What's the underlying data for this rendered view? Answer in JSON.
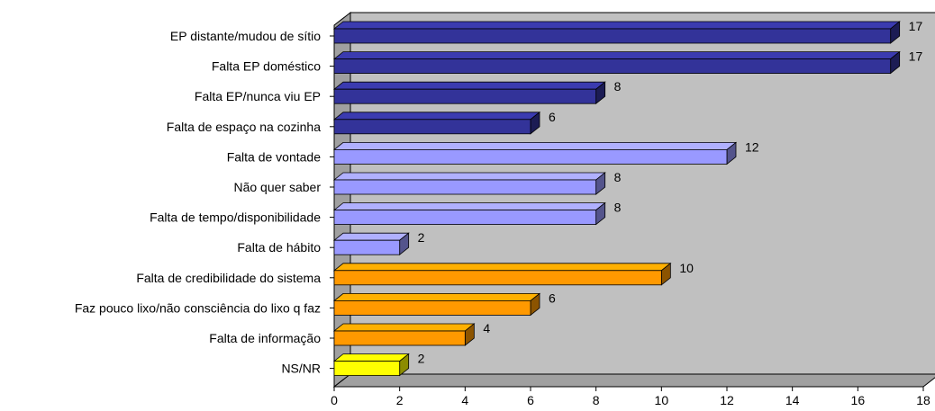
{
  "chart_data": {
    "type": "bar",
    "orientation": "horizontal",
    "style": "3d",
    "title": "",
    "xlabel": "",
    "ylabel": "",
    "xlim": [
      0,
      18
    ],
    "x_ticks": [
      0,
      2,
      4,
      6,
      8,
      10,
      12,
      14,
      16,
      18
    ],
    "grid": false,
    "legend": "none",
    "plot_background": "#c0c0c0",
    "categories": [
      "EP distante/mudou de sítio",
      "Falta EP doméstico",
      "Falta EP/nunca viu EP",
      "Falta de espaço na cozinha",
      "Falta de vontade",
      "Não quer saber",
      "Falta de tempo/disponibilidade",
      "Falta de hábito",
      "Falta de credibilidade do sistema",
      "Faz pouco lixo/não consciência do lixo q faz",
      "Falta de informação",
      "NS/NR"
    ],
    "values": [
      17,
      17,
      8,
      6,
      12,
      8,
      8,
      2,
      10,
      6,
      4,
      2
    ],
    "value_labels": [
      "17",
      "17",
      "8",
      "6",
      "12",
      "8",
      "8",
      "2",
      "10",
      "6",
      "4",
      "2"
    ],
    "bar_colors": [
      "#333399",
      "#333399",
      "#333399",
      "#333399",
      "#9999ff",
      "#9999ff",
      "#9999ff",
      "#9999ff",
      "#ff9900",
      "#ff9900",
      "#ff9900",
      "#ffff00"
    ]
  }
}
